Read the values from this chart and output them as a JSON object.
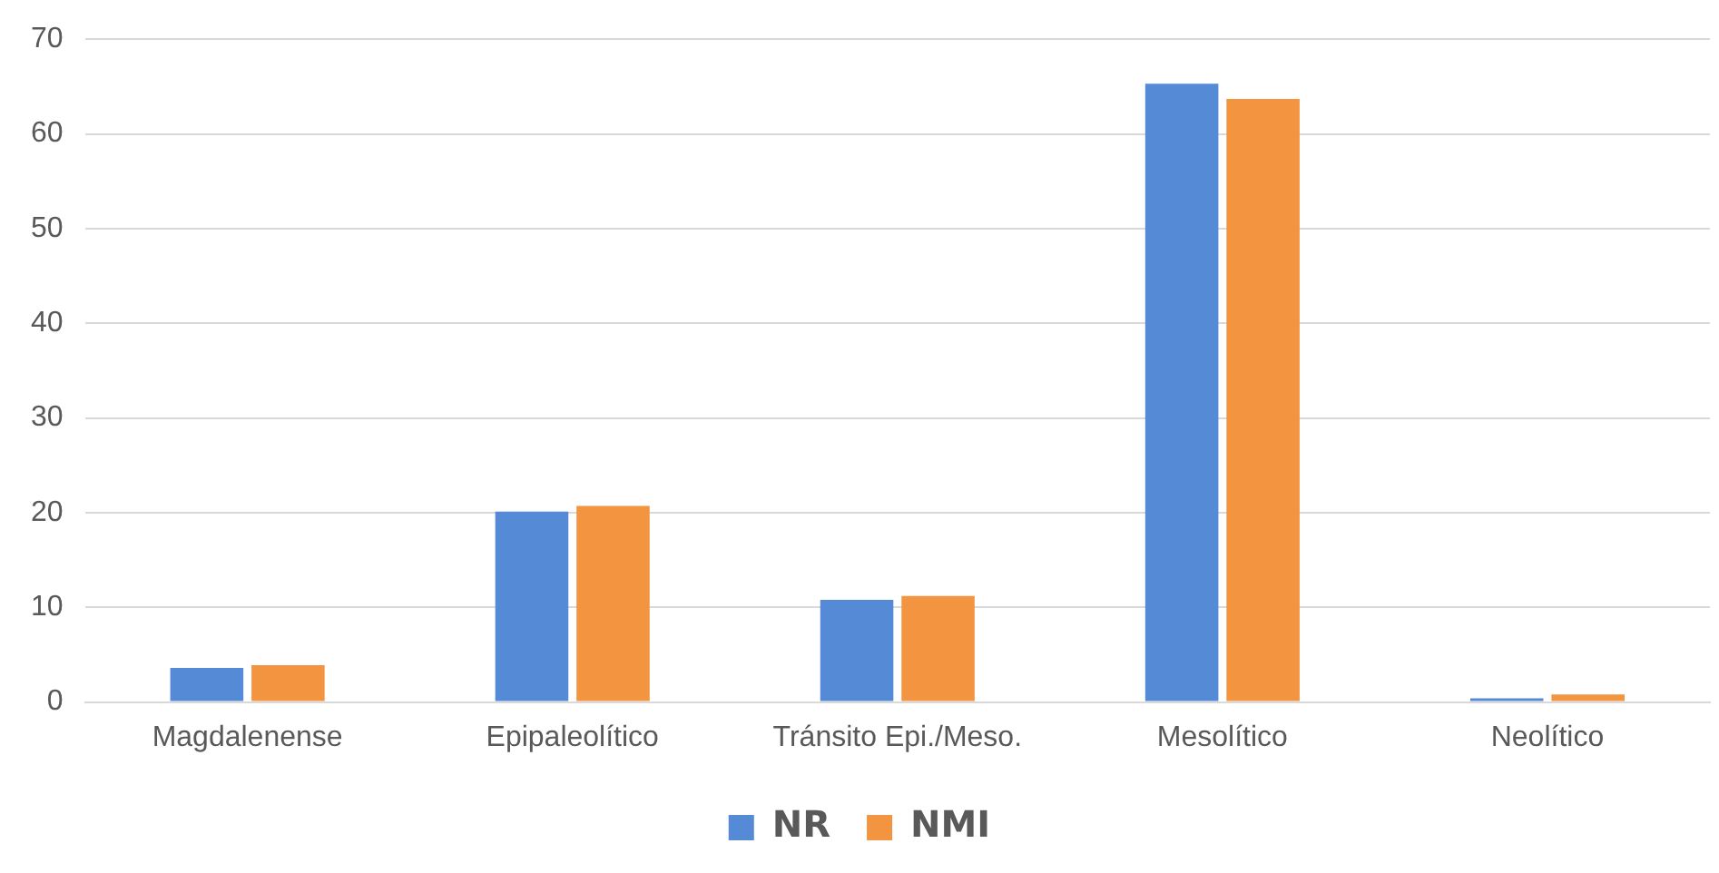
{
  "chart_data": {
    "type": "bar",
    "categories": [
      "Magdalenense",
      "Epipaleolítico",
      "Tránsito Epi./Meso.",
      "Mesolítico",
      "Neolítico"
    ],
    "series": [
      {
        "name": "NR",
        "color": "#558ad6",
        "values": [
          3.6,
          20.1,
          10.8,
          65.3,
          0.4
        ]
      },
      {
        "name": "NMI",
        "color": "#f39440",
        "values": [
          3.9,
          20.7,
          11.2,
          63.7,
          0.8
        ]
      }
    ],
    "ylim": [
      0,
      70
    ],
    "yticks": [
      0,
      10,
      20,
      30,
      40,
      50,
      60,
      70
    ],
    "grid": "y",
    "legend": "bottom"
  }
}
